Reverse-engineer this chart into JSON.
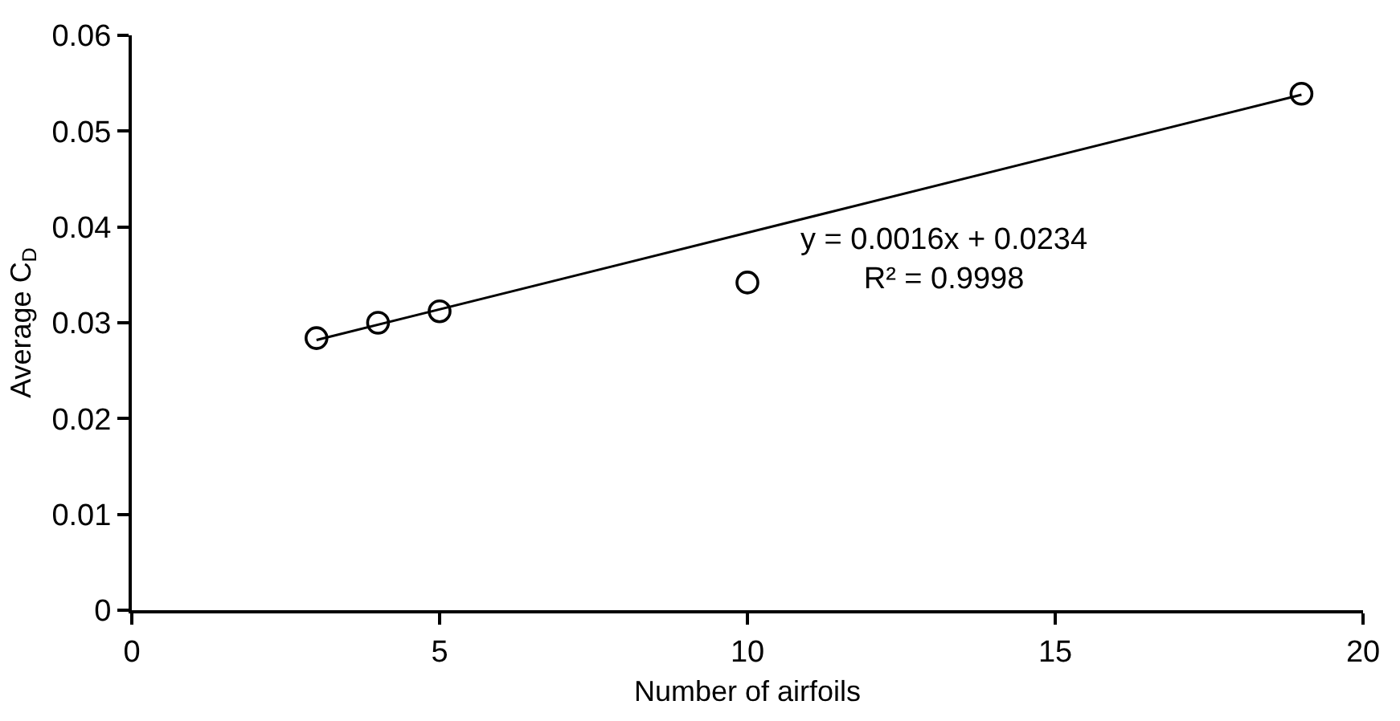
{
  "chart_data": {
    "type": "scatter",
    "xlabel": "Number of airfoils",
    "ylabel": "Average C$_{D}$",
    "x": [
      3,
      4,
      5,
      10,
      19
    ],
    "series": [
      {
        "color": "#000000",
        "marker": "circle",
        "values": [
          0.0284,
          0.03,
          0.0312,
          0.0342,
          0.0539
        ]
      },
      {
        "type": "line",
        "color": "#000000",
        "marker": "none",
        "x": [
          3,
          19
        ],
        "values": [
          0.0282,
          0.0538
        ]
      }
    ],
    "annotations": [
      "y = 0.0016x + 0.0234\nR² = 0.9998"
    ],
    "xlim": [
      0,
      20
    ],
    "xticks": [
      0,
      5,
      10,
      15,
      20
    ],
    "ylim": [
      0,
      0.06
    ],
    "yticks": [
      0,
      0.01,
      0.02,
      0.03,
      0.04,
      0.05,
      0.06
    ]
  }
}
